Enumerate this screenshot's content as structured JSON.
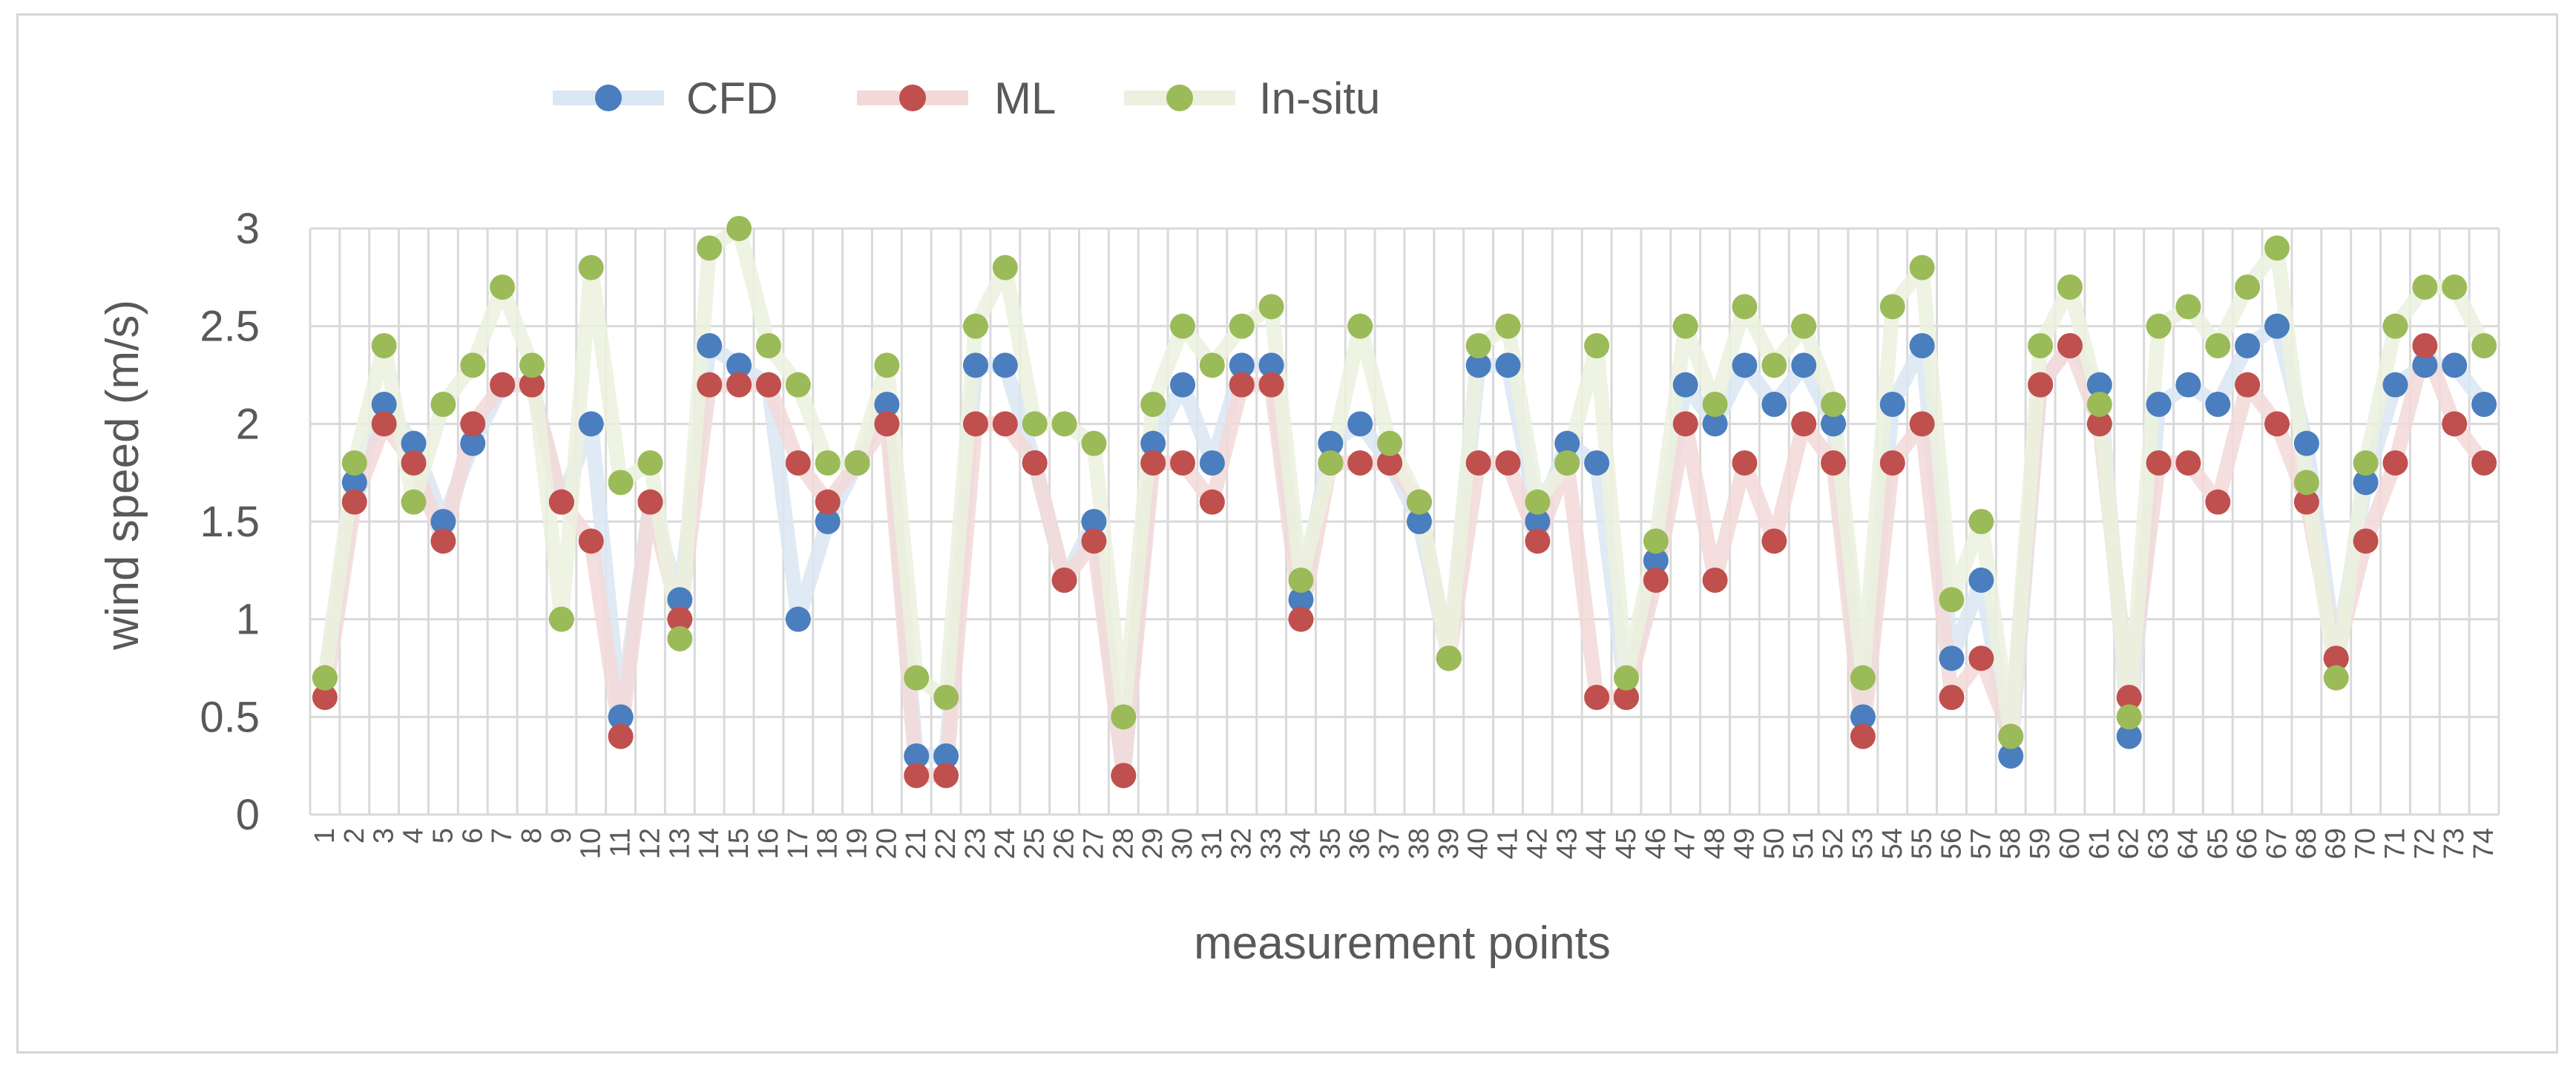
{
  "chart_data": {
    "type": "line",
    "title": "",
    "xlabel": "measurement points",
    "ylabel": "wind speed (m/s)",
    "ylim": [
      0,
      3
    ],
    "yticks": [
      "0",
      "0.5",
      "1",
      "1.5",
      "2",
      "2.5",
      "3"
    ],
    "grid": true,
    "legend_position": "top-left",
    "x": [
      "1",
      "2",
      "3",
      "4",
      "5",
      "6",
      "7",
      "8",
      "9",
      "10",
      "11",
      "12",
      "13",
      "14",
      "15",
      "16",
      "17",
      "18",
      "19",
      "20",
      "21",
      "22",
      "23",
      "24",
      "25",
      "26",
      "27",
      "28",
      "29",
      "30",
      "31",
      "32",
      "33",
      "34",
      "35",
      "36",
      "37",
      "38",
      "39",
      "40",
      "41",
      "42",
      "43",
      "44",
      "45",
      "46",
      "47",
      "48",
      "49",
      "50",
      "51",
      "52",
      "53",
      "54",
      "55",
      "56",
      "57",
      "58",
      "59",
      "60",
      "61",
      "62",
      "63",
      "64",
      "65",
      "66",
      "67",
      "68",
      "69",
      "70",
      "71",
      "72",
      "73",
      "74"
    ],
    "series": [
      {
        "name": "CFD",
        "marker_color": "#4a7ebf",
        "line_color": "#dbe6f3",
        "values": [
          0.7,
          1.7,
          2.1,
          1.9,
          1.5,
          1.9,
          2.2,
          2.2,
          1.6,
          2.0,
          0.5,
          1.6,
          1.1,
          2.4,
          2.3,
          2.2,
          1.0,
          1.5,
          1.8,
          2.1,
          0.3,
          0.3,
          2.3,
          2.3,
          1.8,
          1.2,
          1.5,
          0.2,
          1.9,
          2.2,
          1.8,
          2.3,
          2.3,
          1.1,
          1.9,
          2.0,
          1.8,
          1.5,
          0.8,
          2.3,
          2.3,
          1.5,
          1.9,
          1.8,
          0.6,
          1.3,
          2.2,
          2.0,
          2.3,
          2.1,
          2.3,
          2.0,
          0.5,
          2.1,
          2.4,
          0.8,
          1.2,
          0.3,
          2.2,
          2.4,
          2.2,
          0.4,
          2.1,
          2.2,
          2.1,
          2.4,
          2.5,
          1.9,
          0.8,
          1.7,
          2.2,
          2.3,
          2.3,
          2.1
        ]
      },
      {
        "name": "ML",
        "marker_color": "#c0504d",
        "line_color": "#f2d9d8",
        "values": [
          0.6,
          1.6,
          2.0,
          1.8,
          1.4,
          2.0,
          2.2,
          2.2,
          1.6,
          1.4,
          0.4,
          1.6,
          1.0,
          2.2,
          2.2,
          2.2,
          1.8,
          1.6,
          1.8,
          2.0,
          0.2,
          0.2,
          2.0,
          2.0,
          1.8,
          1.2,
          1.4,
          0.2,
          1.8,
          1.8,
          1.6,
          2.2,
          2.2,
          1.0,
          1.8,
          1.8,
          1.8,
          1.6,
          0.8,
          1.8,
          1.8,
          1.4,
          1.8,
          0.6,
          0.6,
          1.2,
          2.0,
          1.2,
          1.8,
          1.4,
          2.0,
          1.8,
          0.4,
          1.8,
          2.0,
          0.6,
          0.8,
          0.4,
          2.2,
          2.4,
          2.0,
          0.6,
          1.8,
          1.8,
          1.6,
          2.2,
          2.0,
          1.6,
          0.8,
          1.4,
          1.8,
          2.4,
          2.0,
          1.8
        ]
      },
      {
        "name": "In-situ",
        "marker_color": "#9bbb59",
        "line_color": "#ebf1de",
        "values": [
          0.7,
          1.8,
          2.4,
          1.6,
          2.1,
          2.3,
          2.7,
          2.3,
          1.0,
          2.8,
          1.7,
          1.8,
          0.9,
          2.9,
          3.0,
          2.4,
          2.2,
          1.8,
          1.8,
          2.3,
          0.7,
          0.6,
          2.5,
          2.8,
          2.0,
          2.0,
          1.9,
          0.5,
          2.1,
          2.5,
          2.3,
          2.5,
          2.6,
          1.2,
          1.8,
          2.5,
          1.9,
          1.6,
          0.8,
          2.4,
          2.5,
          1.6,
          1.8,
          2.4,
          0.7,
          1.4,
          2.5,
          2.1,
          2.6,
          2.3,
          2.5,
          2.1,
          0.7,
          2.6,
          2.8,
          1.1,
          1.5,
          0.4,
          2.4,
          2.7,
          2.1,
          0.5,
          2.5,
          2.6,
          2.4,
          2.7,
          2.9,
          1.7,
          0.7,
          1.8,
          2.5,
          2.7,
          2.7,
          2.4
        ]
      }
    ]
  }
}
